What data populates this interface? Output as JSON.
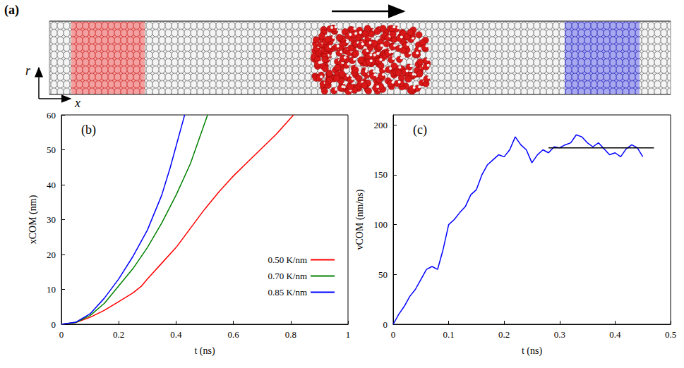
{
  "panel_a": {
    "label": "(a)",
    "axis_vertical": "r",
    "axis_horizontal": "x"
  },
  "chart_data": [
    {
      "type": "line",
      "panel": "(b)",
      "xlabel": "t (ns)",
      "ylabel": "xCOM (nm)",
      "xlim": [
        0,
        1
      ],
      "xticks": [
        0,
        0.2,
        0.4,
        0.6,
        0.8,
        1
      ],
      "ylim": [
        0,
        60
      ],
      "yticks": [
        0,
        10,
        20,
        30,
        40,
        50,
        60
      ],
      "grid": false,
      "legend": "lower right",
      "series": [
        {
          "name": "0.50 K/nm",
          "color": "#ff0000",
          "x": [
            0,
            0.05,
            0.1,
            0.15,
            0.2,
            0.25,
            0.28,
            0.3,
            0.35,
            0.4,
            0.45,
            0.5,
            0.55,
            0.6,
            0.65,
            0.7,
            0.75,
            0.81
          ],
          "values": [
            0,
            0.5,
            2,
            4,
            6.5,
            9,
            11,
            13,
            17.5,
            22,
            27.5,
            33,
            38,
            42.5,
            46.5,
            50.5,
            54.5,
            60
          ]
        },
        {
          "name": "0.70 K/nm",
          "color": "#008000",
          "x": [
            0,
            0.05,
            0.1,
            0.15,
            0.2,
            0.25,
            0.3,
            0.35,
            0.4,
            0.45,
            0.51
          ],
          "values": [
            0,
            0.5,
            2.5,
            6,
            11,
            16,
            22,
            29,
            37,
            46,
            60
          ]
        },
        {
          "name": "0.85 K/nm",
          "color": "#0000ff",
          "x": [
            0,
            0.05,
            0.1,
            0.15,
            0.2,
            0.25,
            0.3,
            0.35,
            0.38,
            0.43
          ],
          "values": [
            0,
            0.6,
            3,
            7.5,
            13,
            19.5,
            27,
            37,
            45,
            60
          ]
        }
      ]
    },
    {
      "type": "line",
      "panel": "(c)",
      "xlabel": "t (ns)",
      "ylabel": "vCOM (nm/ns)",
      "xlim": [
        0,
        0.5
      ],
      "xticks": [
        0,
        0.1,
        0.2,
        0.3,
        0.4,
        0.5
      ],
      "ylim": [
        0,
        210
      ],
      "yticks": [
        0,
        50,
        100,
        150,
        200
      ],
      "grid": false,
      "series": [
        {
          "color": "#0000ff",
          "x": [
            0,
            0.01,
            0.02,
            0.03,
            0.04,
            0.05,
            0.06,
            0.07,
            0.08,
            0.09,
            0.1,
            0.11,
            0.12,
            0.13,
            0.14,
            0.15,
            0.16,
            0.17,
            0.18,
            0.19,
            0.2,
            0.21,
            0.22,
            0.23,
            0.24,
            0.25,
            0.26,
            0.27,
            0.28,
            0.29,
            0.3,
            0.31,
            0.32,
            0.33,
            0.34,
            0.35,
            0.36,
            0.37,
            0.38,
            0.39,
            0.4,
            0.41,
            0.42,
            0.43,
            0.44,
            0.45
          ],
          "values": [
            0,
            10,
            18,
            28,
            35,
            45,
            55,
            58,
            55,
            75,
            100,
            105,
            112,
            118,
            130,
            135,
            150,
            160,
            165,
            170,
            168,
            175,
            188,
            180,
            175,
            162,
            170,
            175,
            172,
            178,
            177,
            180,
            182,
            190,
            188,
            182,
            178,
            182,
            176,
            170,
            172,
            168,
            176,
            180,
            177,
            168
          ]
        },
        {
          "color": "#000000",
          "x": [
            0.28,
            0.47
          ],
          "values": [
            177,
            177
          ]
        }
      ]
    }
  ]
}
